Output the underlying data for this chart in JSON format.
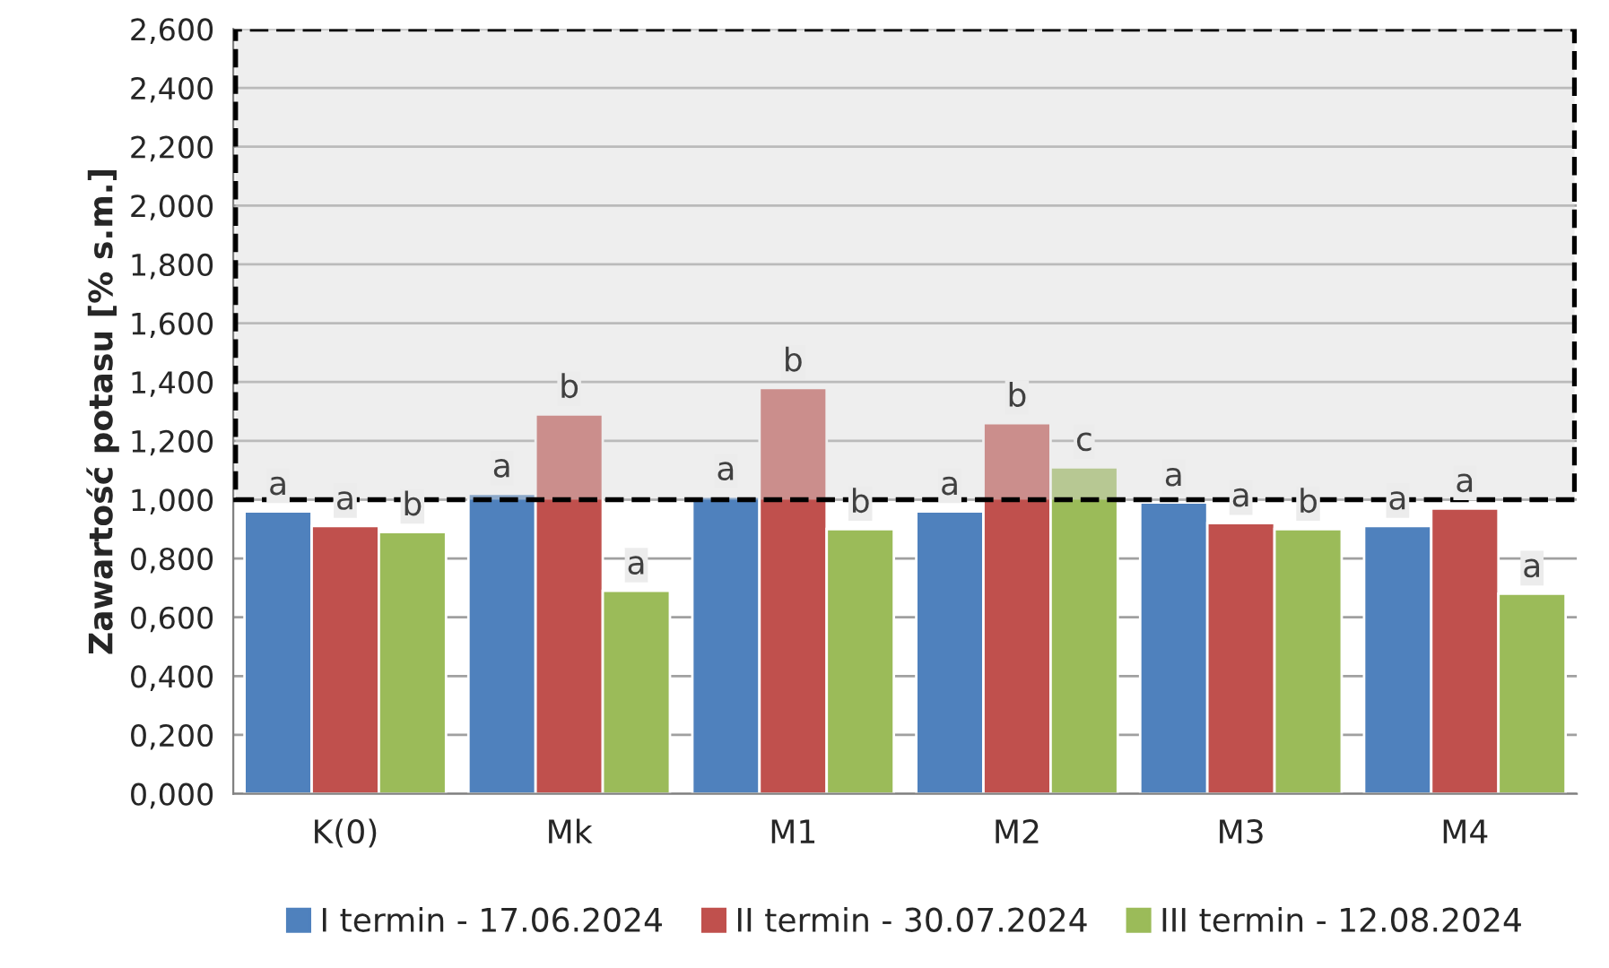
{
  "chart_data": {
    "type": "bar",
    "ylabel": "Zawartość potasu [% s.m.]",
    "categories": [
      "K(0)",
      "Mk",
      "M1",
      "M2",
      "M3",
      "M4"
    ],
    "series": [
      {
        "name": "I termin - 17.06.2024",
        "color": "#4f81bd",
        "values": [
          0.96,
          1.02,
          1.01,
          0.96,
          0.99,
          0.91
        ],
        "value_labels": [
          "a",
          "a",
          "a",
          "a",
          "a",
          "a"
        ]
      },
      {
        "name": "II termin - 30.07.2024",
        "color": "#c0504d",
        "values": [
          0.91,
          1.29,
          1.38,
          1.26,
          0.92,
          0.97
        ],
        "value_labels": [
          "a",
          "b",
          "b",
          "b",
          "a",
          "a"
        ]
      },
      {
        "name": "III termin - 12.08.2024",
        "color": "#9bbb59",
        "values": [
          0.89,
          0.69,
          0.9,
          1.11,
          0.9,
          0.68
        ],
        "value_labels": [
          "b",
          "a",
          "b",
          "c",
          "b",
          "a"
        ]
      }
    ],
    "ylim": [
      0,
      2.6
    ],
    "yticks": [
      {
        "value": 0,
        "label": "0,000"
      },
      {
        "value": 0.2,
        "label": "0,200"
      },
      {
        "value": 0.4,
        "label": "0,400"
      },
      {
        "value": 0.6,
        "label": "0,600"
      },
      {
        "value": 0.8,
        "label": "0,800"
      },
      {
        "value": 1.0,
        "label": "1,000"
      },
      {
        "value": 1.2,
        "label": "1,200"
      },
      {
        "value": 1.4,
        "label": "1,400"
      },
      {
        "value": 1.6,
        "label": "1,600"
      },
      {
        "value": 1.8,
        "label": "1,800"
      },
      {
        "value": 2.0,
        "label": "2,000"
      },
      {
        "value": 2.2,
        "label": "2,200"
      },
      {
        "value": 2.4,
        "label": "2,400"
      },
      {
        "value": 2.6,
        "label": "2,600"
      }
    ],
    "bands": [
      {
        "axis": "y",
        "from": 1.0,
        "to": 2.6,
        "color": "#d9d9d9"
      }
    ],
    "grid": "y",
    "legend": "bottom"
  }
}
